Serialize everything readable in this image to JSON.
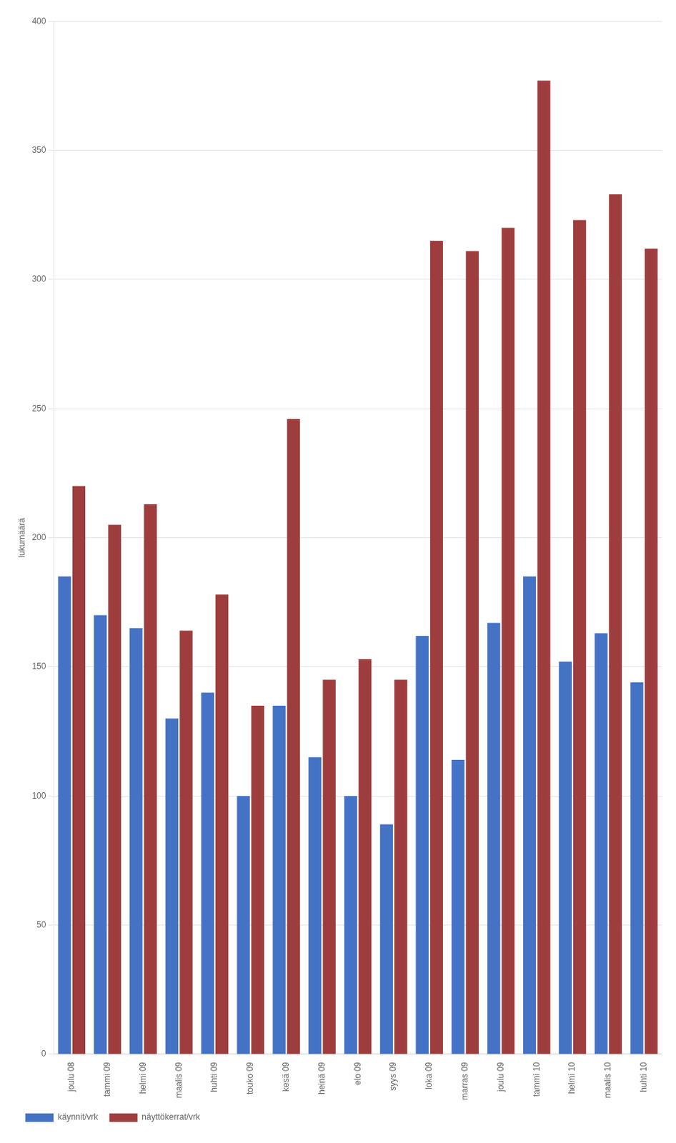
{
  "chart_data": {
    "type": "bar",
    "categories": [
      "joulu 08",
      "tammi 09",
      "helmi 09",
      "maalis 09",
      "huhti 09",
      "touko 09",
      "kesä 09",
      "heinä 09",
      "elo 09",
      "syys 09",
      "loka 09",
      "marras 09",
      "joulu 09",
      "tammi 10",
      "helmi 10",
      "maalis 10",
      "huhti 10"
    ],
    "series": [
      {
        "name": "käynnit/vrk",
        "color": "#4472C4",
        "values": [
          185,
          170,
          165,
          130,
          140,
          100,
          135,
          115,
          100,
          89,
          162,
          114,
          167,
          185,
          152,
          163,
          144
        ]
      },
      {
        "name": "näyttökerrat/vrk",
        "color": "#9E3D3D",
        "values": [
          220,
          205,
          213,
          164,
          178,
          135,
          246,
          145,
          153,
          145,
          315,
          311,
          320,
          377,
          323,
          333,
          312
        ]
      }
    ],
    "ylabel": "lukumäärä",
    "ylim": [
      0,
      400
    ],
    "yticks": [
      0,
      50,
      100,
      150,
      200,
      250,
      300,
      350,
      400
    ],
    "grid": true,
    "legend": "lower left"
  }
}
